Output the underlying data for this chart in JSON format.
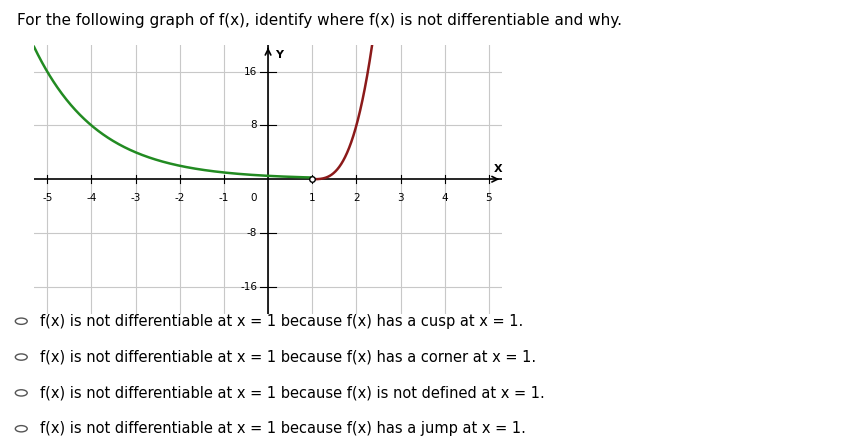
{
  "title": "For the following graph of f(x), identify where f(x) is not differentiable and why.",
  "title_fontsize": 11,
  "xlim": [
    -5.3,
    5.3
  ],
  "ylim": [
    -20,
    20
  ],
  "xticks": [
    -5,
    -4,
    -3,
    -2,
    -1,
    1,
    2,
    3,
    4,
    5
  ],
  "yticks": [
    -16,
    -8,
    8,
    16
  ],
  "green_color": "#228B22",
  "red_color": "#8B1A1A",
  "bg_color": "#ffffff",
  "grid_color": "#c8c8c8",
  "options": [
    "f(x) is not differentiable at x = 1 because f(x) has a cusp at x = 1.",
    "f(x) is not differentiable at x = 1 because f(x) has a corner at x = 1.",
    "f(x) is not differentiable at x = 1 because f(x) is not defined at x = 1.",
    "f(x) is not differentiable at x = 1 because f(x) has a jump at x = 1."
  ],
  "option_fontsize": 10.5,
  "green_x_start": -5.3,
  "green_x_end": 1.0,
  "red_x_start": 1.0,
  "red_x_end": 2.45
}
